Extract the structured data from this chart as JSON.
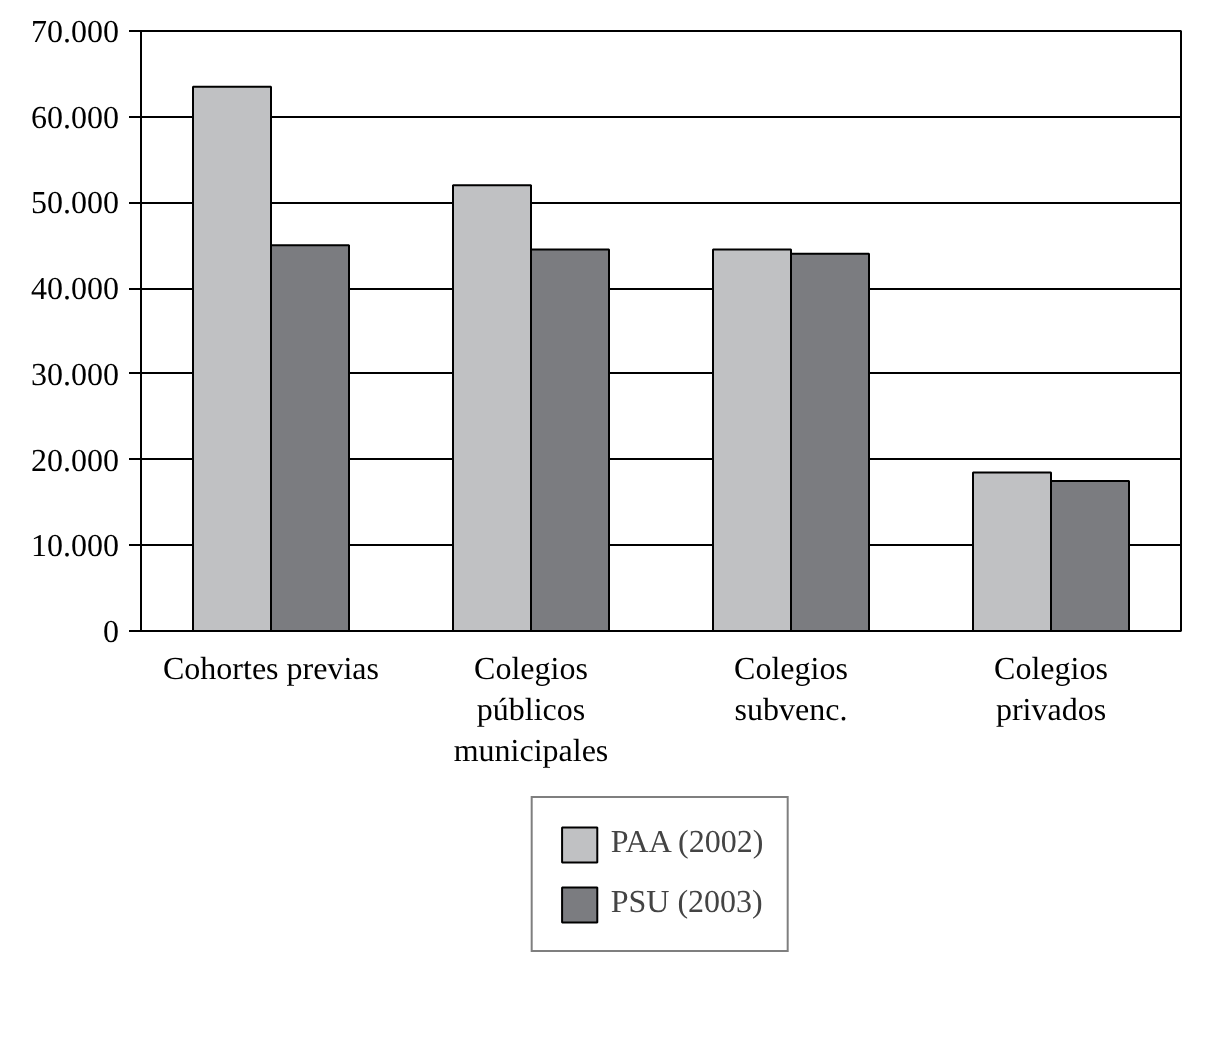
{
  "chart_data": {
    "type": "bar",
    "categories": [
      "Cohortes previas",
      "Colegios\npúblicos\nmunicipales",
      "Colegios\nsubvenc.",
      "Colegios\nprivados"
    ],
    "series": [
      {
        "name": "PAA (2002)",
        "color": "#c0c1c3",
        "values": [
          63500,
          52000,
          44500,
          18500
        ]
      },
      {
        "name": "PSU (2003)",
        "color": "#7b7c80",
        "values": [
          45000,
          44500,
          44000,
          17500
        ]
      }
    ],
    "ylim": [
      0,
      70000
    ],
    "yticks": [
      {
        "value": 0,
        "label": "0"
      },
      {
        "value": 10000,
        "label": "10.000"
      },
      {
        "value": 20000,
        "label": "20.000"
      },
      {
        "value": 30000,
        "label": "30.000"
      },
      {
        "value": 40000,
        "label": "40.000"
      },
      {
        "value": 50000,
        "label": "50.000"
      },
      {
        "value": 60000,
        "label": "60.000"
      },
      {
        "value": 70000,
        "label": "70.000"
      }
    ],
    "grid": "y",
    "legend": "bottom"
  }
}
